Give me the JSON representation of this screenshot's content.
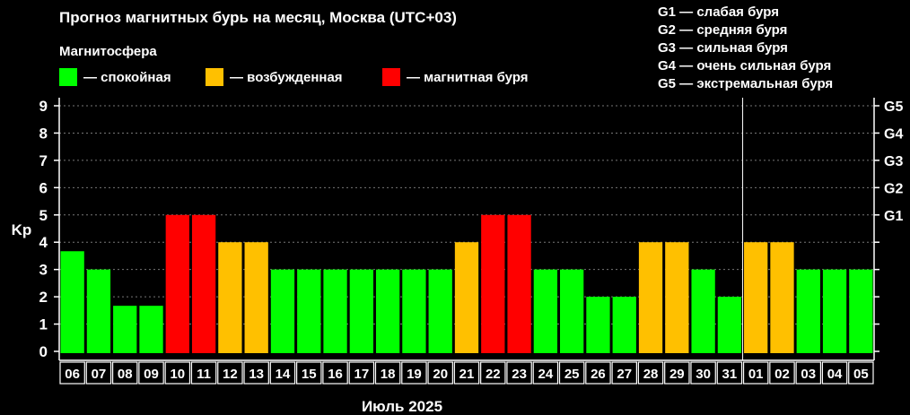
{
  "title": "Прогноз магнитных бурь на месяц, Москва (UTC+03)",
  "legend": {
    "heading": "Магнитосфера",
    "items": [
      {
        "key": "calm",
        "label": "— спокойная",
        "color": "#00ff00"
      },
      {
        "key": "excited",
        "label": "— возбужденная",
        "color": "#ffc000"
      },
      {
        "key": "storm",
        "label": "— магнитная буря",
        "color": "#ff0000"
      }
    ]
  },
  "g_scale": [
    "G1 — слабая буря",
    "G2 — средняя буря",
    "G3 — сильная буря",
    "G4 — очень сильная буря",
    "G5 — экстремальная буря"
  ],
  "chart_data": {
    "type": "bar",
    "ylabel": "Kp",
    "xlabel": "Июль 2025",
    "ylim": [
      0,
      9
    ],
    "grid": true,
    "y_ticks": [
      "0",
      "1",
      "2",
      "3",
      "4",
      "5",
      "6",
      "7",
      "8",
      "9"
    ],
    "right_ticks": [
      "G1",
      "G2",
      "G3",
      "G4",
      "G5"
    ],
    "right_tick_values": [
      5,
      6,
      7,
      8,
      9
    ],
    "categories": [
      "06",
      "07",
      "08",
      "09",
      "10",
      "11",
      "12",
      "13",
      "14",
      "15",
      "16",
      "17",
      "18",
      "19",
      "20",
      "21",
      "22",
      "23",
      "24",
      "25",
      "26",
      "27",
      "28",
      "29",
      "30",
      "31",
      "01",
      "02",
      "03",
      "04",
      "05"
    ],
    "values": [
      3.67,
      3,
      1.67,
      1.67,
      5,
      5,
      4,
      4,
      3,
      3,
      3,
      3,
      3,
      3,
      3,
      4,
      5,
      5,
      3,
      3,
      2,
      2,
      4,
      4,
      3,
      2,
      4,
      4,
      3,
      3,
      3
    ],
    "levels": [
      "calm",
      "calm",
      "calm",
      "calm",
      "storm",
      "storm",
      "excited",
      "excited",
      "calm",
      "calm",
      "calm",
      "calm",
      "calm",
      "calm",
      "calm",
      "excited",
      "storm",
      "storm",
      "calm",
      "calm",
      "calm",
      "calm",
      "excited",
      "excited",
      "calm",
      "calm",
      "excited",
      "excited",
      "calm",
      "calm",
      "calm"
    ],
    "month_divider_after": "31",
    "colors": {
      "calm": "#00ff00",
      "excited": "#ffc000",
      "storm": "#ff0000"
    }
  }
}
